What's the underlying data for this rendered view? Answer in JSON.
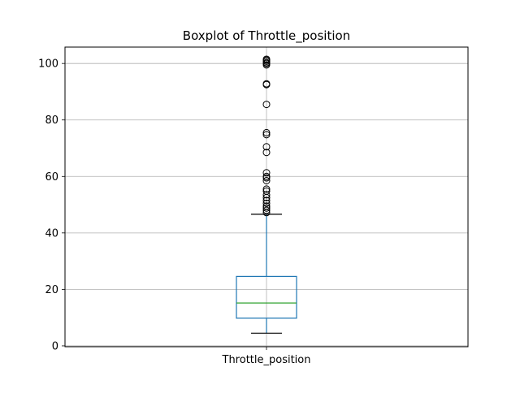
{
  "chart_data": {
    "type": "box",
    "title": "Boxplot of Throttle_position",
    "xlabel": "",
    "ylabel": "",
    "categories": [
      "Throttle_position"
    ],
    "ylim": [
      -0.3,
      105.8
    ],
    "yticks": [
      0,
      20,
      40,
      60,
      80,
      100
    ],
    "grid": true,
    "series": [
      {
        "whisker_low": 4.5,
        "q1": 9.8,
        "median": 15.2,
        "q3": 24.6,
        "whisker_high": 46.6,
        "outliers": [
          47.2,
          48.0,
          48.8,
          49.5,
          50.5,
          51.5,
          52.5,
          53.5,
          54.8,
          55.5,
          58.5,
          59.5,
          60.0,
          61.3,
          68.5,
          70.5,
          74.8,
          75.5,
          85.5,
          92.5,
          92.8,
          99.5,
          100.0,
          100.3,
          100.8,
          101.2,
          101.5
        ]
      }
    ],
    "colors": {
      "box": "#1f77b4",
      "median": "#2ca02c",
      "whisker": "#000000",
      "grid": "#b0b0b0"
    }
  }
}
